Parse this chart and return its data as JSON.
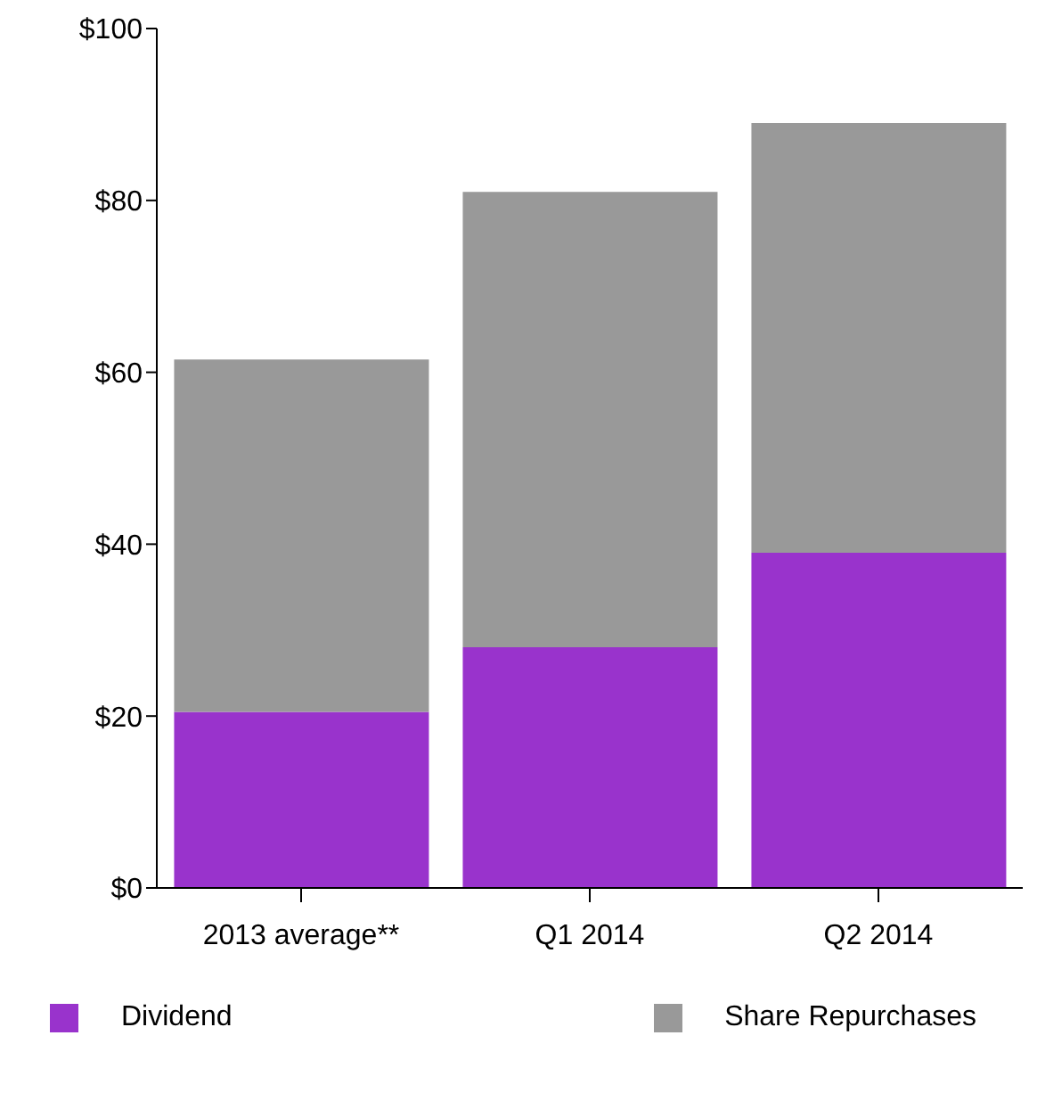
{
  "chart_data": {
    "type": "bar",
    "stacked": true,
    "categories": [
      "2013 average**",
      "Q1 2014",
      "Q2 2014"
    ],
    "series": [
      {
        "name": "Dividend",
        "color": "#9933cc",
        "values": [
          20.5,
          28,
          39
        ]
      },
      {
        "name": "Share Repurchases",
        "color": "#999999",
        "values": [
          41,
          53,
          50
        ]
      }
    ],
    "ylim": [
      0,
      100
    ],
    "yticks": [
      {
        "value": 0,
        "label": "$0"
      },
      {
        "value": 20,
        "label": "$20"
      },
      {
        "value": 40,
        "label": "$40"
      },
      {
        "value": 60,
        "label": "$60"
      },
      {
        "value": 80,
        "label": "$80"
      },
      {
        "value": 100,
        "label": "$100"
      }
    ],
    "grid": false,
    "legend": "bottom"
  }
}
